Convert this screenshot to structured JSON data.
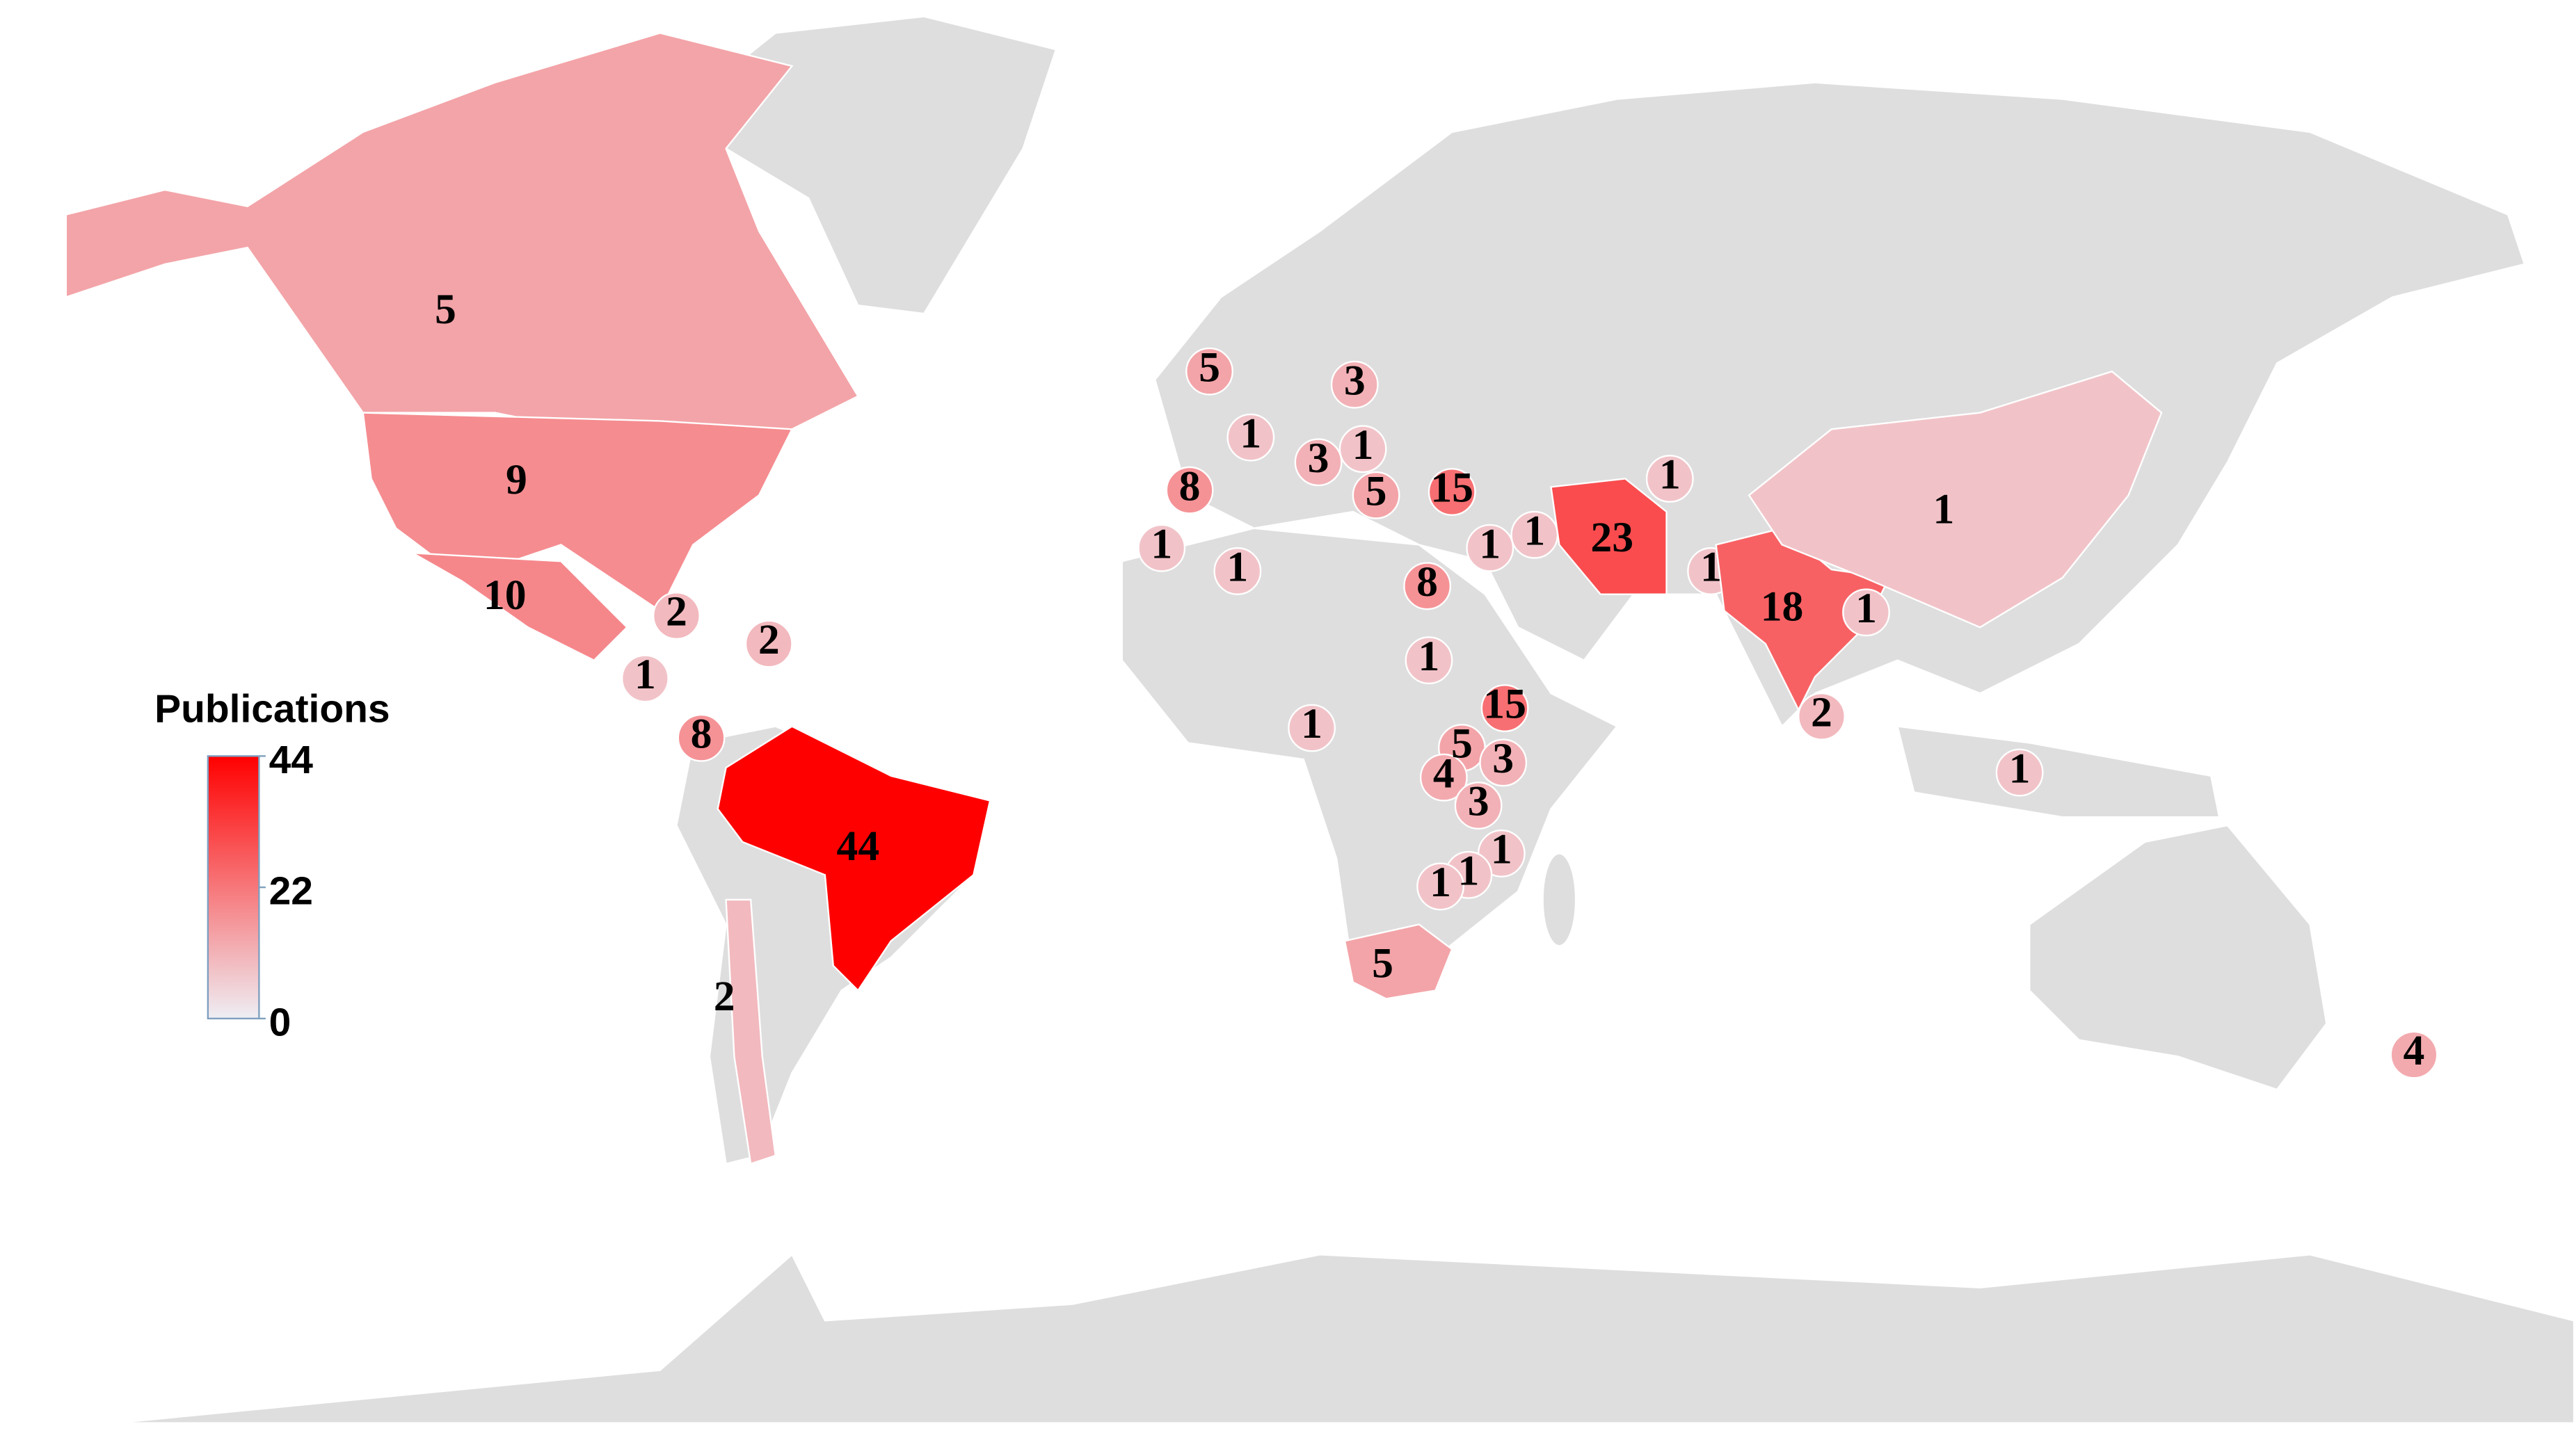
{
  "map": {
    "type": "choropleth",
    "legend": {
      "title": "Publications",
      "range": [
        0,
        44
      ],
      "ticks": [
        0,
        22,
        44
      ],
      "color_range": [
        "#eeeef4",
        "#ff0000"
      ]
    },
    "regions": {
      "values": [
        5,
        9,
        10,
        2,
        2,
        1,
        8,
        44,
        2,
        5,
        3,
        1,
        3,
        1,
        8,
        5,
        15,
        1,
        1,
        1,
        1,
        23,
        1,
        1,
        18,
        1,
        1,
        2,
        1,
        8,
        1,
        15,
        5,
        3,
        4,
        3,
        1,
        1,
        1,
        1,
        5,
        4
      ]
    }
  }
}
